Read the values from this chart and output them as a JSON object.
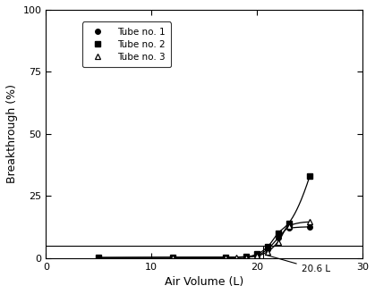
{
  "title": "",
  "xlabel": "Air Volume (L)",
  "ylabel": "Breakthrough (%)",
  "xlim": [
    0,
    30
  ],
  "ylim": [
    0,
    100
  ],
  "yticks": [
    0,
    25,
    50,
    75,
    100
  ],
  "xticks": [
    0,
    10,
    20,
    30
  ],
  "tube1_x": [
    5,
    12,
    17,
    19,
    20,
    21,
    22,
    23,
    25
  ],
  "tube1_y": [
    0.1,
    0.2,
    0.2,
    0.4,
    1.0,
    3.5,
    8.0,
    12.0,
    12.5
  ],
  "tube2_x": [
    5,
    12,
    17,
    19,
    20,
    21,
    22,
    23,
    25
  ],
  "tube2_y": [
    0.2,
    0.3,
    0.3,
    0.5,
    1.5,
    4.5,
    10.0,
    14.0,
    33.0
  ],
  "tube3_x": [
    12,
    17,
    18,
    19,
    20,
    21,
    22,
    23,
    25
  ],
  "tube3_y": [
    0.1,
    0.15,
    0.2,
    0.3,
    0.8,
    2.5,
    6.5,
    13.0,
    14.5
  ],
  "hline_y": 5,
  "vline_x": 20.6,
  "annotation_text": "20.6 L",
  "background_color": "#ffffff",
  "line_color": "#000000",
  "marker_color": "#000000",
  "legend_labels": [
    "Tube no. 1",
    "Tube no. 2",
    "Tube no. 3"
  ]
}
